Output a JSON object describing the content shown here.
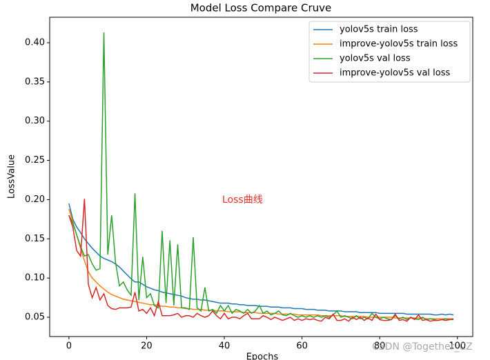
{
  "chart_data": {
    "type": "line",
    "title": "Model Loss Compare Cruve",
    "xlabel": "Epochs",
    "ylabel": "LossValue",
    "annotations": [
      "Loss曲线",
      "CSDN @Together_CZ"
    ],
    "legend": "upper right",
    "xlim": [
      -4.95,
      103.95
    ],
    "xticks": [
      0,
      20,
      40,
      60,
      80,
      100
    ],
    "ylim": [
      0.0254,
      0.4325
    ],
    "yticks": [
      0.05,
      {
        "value": 0.1,
        "label": "0.10"
      },
      0.15,
      {
        "value": 0.2,
        "label": "0.20"
      },
      0.25,
      {
        "value": 0.3,
        "label": "0.30"
      },
      0.35,
      {
        "value": 0.4,
        "label": "0.40"
      }
    ],
    "x": [
      0,
      1,
      2,
      3,
      4,
      5,
      6,
      7,
      8,
      9,
      10,
      11,
      12,
      13,
      14,
      15,
      16,
      17,
      18,
      19,
      20,
      21,
      22,
      23,
      24,
      25,
      26,
      27,
      28,
      29,
      30,
      31,
      32,
      33,
      34,
      35,
      36,
      37,
      38,
      39,
      40,
      41,
      42,
      43,
      44,
      45,
      46,
      47,
      48,
      49,
      50,
      51,
      52,
      53,
      54,
      55,
      56,
      57,
      58,
      59,
      60,
      61,
      62,
      63,
      64,
      65,
      66,
      67,
      68,
      69,
      70,
      71,
      72,
      73,
      74,
      75,
      76,
      77,
      78,
      79,
      80,
      81,
      82,
      83,
      84,
      85,
      86,
      87,
      88,
      89,
      90,
      91,
      92,
      93,
      94,
      95,
      96,
      97,
      98,
      99
    ],
    "series": [
      {
        "name": "yolov5s train loss",
        "color": "#1f77b4",
        "values": [
          0.195,
          0.175,
          0.165,
          0.158,
          0.15,
          0.144,
          0.138,
          0.133,
          0.128,
          0.125,
          0.123,
          0.121,
          0.118,
          0.114,
          0.109,
          0.104,
          0.099,
          0.095,
          0.095,
          0.092,
          0.089,
          0.087,
          0.085,
          0.084,
          0.082,
          0.081,
          0.08,
          0.079,
          0.078,
          0.077,
          0.075,
          0.074,
          0.073,
          0.073,
          0.072,
          0.072,
          0.071,
          0.07,
          0.069,
          0.068,
          0.068,
          0.068,
          0.067,
          0.067,
          0.066,
          0.066,
          0.065,
          0.065,
          0.065,
          0.064,
          0.064,
          0.064,
          0.063,
          0.063,
          0.063,
          0.062,
          0.062,
          0.062,
          0.061,
          0.061,
          0.061,
          0.06,
          0.06,
          0.06,
          0.059,
          0.059,
          0.059,
          0.058,
          0.058,
          0.058,
          0.058,
          0.057,
          0.057,
          0.057,
          0.057,
          0.056,
          0.056,
          0.056,
          0.056,
          0.056,
          0.055,
          0.055,
          0.055,
          0.055,
          0.055,
          0.055,
          0.055,
          0.054,
          0.054,
          0.054,
          0.054,
          0.054,
          0.054,
          0.054,
          0.053,
          0.053,
          0.054,
          0.053,
          0.054,
          0.053
        ]
      },
      {
        "name": "improve-yolov5s train loss",
        "color": "#ff7f0e",
        "values": [
          0.188,
          0.172,
          0.155,
          0.138,
          0.122,
          0.108,
          0.1,
          0.095,
          0.09,
          0.086,
          0.082,
          0.079,
          0.077,
          0.075,
          0.073,
          0.072,
          0.071,
          0.07,
          0.069,
          0.068,
          0.067,
          0.066,
          0.066,
          0.065,
          0.064,
          0.064,
          0.063,
          0.063,
          0.062,
          0.062,
          0.061,
          0.061,
          0.06,
          0.06,
          0.06,
          0.059,
          0.059,
          0.059,
          0.058,
          0.058,
          0.058,
          0.057,
          0.057,
          0.057,
          0.057,
          0.056,
          0.056,
          0.056,
          0.056,
          0.055,
          0.055,
          0.055,
          0.055,
          0.055,
          0.054,
          0.054,
          0.054,
          0.054,
          0.054,
          0.053,
          0.053,
          0.053,
          0.053,
          0.053,
          0.053,
          0.052,
          0.052,
          0.052,
          0.052,
          0.052,
          0.052,
          0.051,
          0.051,
          0.051,
          0.051,
          0.051,
          0.051,
          0.05,
          0.05,
          0.05,
          0.05,
          0.05,
          0.05,
          0.05,
          0.049,
          0.049,
          0.049,
          0.049,
          0.049,
          0.049,
          0.049,
          0.049,
          0.048,
          0.048,
          0.048,
          0.048,
          0.048,
          0.048,
          0.048,
          0.048
        ]
      },
      {
        "name": "yolov5s val loss",
        "color": "#2ca02c",
        "values": [
          0.18,
          0.17,
          0.155,
          0.14,
          0.128,
          0.13,
          0.118,
          0.11,
          0.112,
          0.413,
          0.13,
          0.18,
          0.12,
          0.09,
          0.095,
          0.085,
          0.078,
          0.208,
          0.072,
          0.127,
          0.075,
          0.08,
          0.065,
          0.062,
          0.16,
          0.068,
          0.148,
          0.065,
          0.143,
          0.062,
          0.062,
          0.06,
          0.152,
          0.062,
          0.058,
          0.088,
          0.058,
          0.06,
          0.055,
          0.065,
          0.058,
          0.065,
          0.055,
          0.06,
          0.058,
          0.055,
          0.06,
          0.055,
          0.058,
          0.065,
          0.055,
          0.058,
          0.053,
          0.055,
          0.058,
          0.053,
          0.052,
          0.055,
          0.052,
          0.05,
          0.052,
          0.05,
          0.052,
          0.05,
          0.052,
          0.05,
          0.052,
          0.05,
          0.053,
          0.058,
          0.05,
          0.052,
          0.05,
          0.048,
          0.052,
          0.048,
          0.05,
          0.048,
          0.055,
          0.05,
          0.048,
          0.05,
          0.048,
          0.047,
          0.052,
          0.048,
          0.05,
          0.047,
          0.05,
          0.048,
          0.047,
          0.05,
          0.047,
          0.048,
          0.047,
          0.046,
          0.047,
          0.048,
          0.047,
          0.048
        ]
      },
      {
        "name": "improve-yolov5s val loss",
        "color": "#d62728",
        "values": [
          0.18,
          0.165,
          0.135,
          0.128,
          0.201,
          0.092,
          0.075,
          0.088,
          0.072,
          0.08,
          0.065,
          0.061,
          0.06,
          0.062,
          0.062,
          0.062,
          0.063,
          0.082,
          0.058,
          0.06,
          0.055,
          0.062,
          0.052,
          0.07,
          0.052,
          0.052,
          0.052,
          0.053,
          0.055,
          0.05,
          0.052,
          0.052,
          0.05,
          0.055,
          0.052,
          0.05,
          0.052,
          0.058,
          0.052,
          0.048,
          0.055,
          0.048,
          0.05,
          0.05,
          0.048,
          0.052,
          0.055,
          0.048,
          0.048,
          0.048,
          0.052,
          0.05,
          0.047,
          0.05,
          0.048,
          0.046,
          0.048,
          0.05,
          0.046,
          0.048,
          0.046,
          0.048,
          0.047,
          0.048,
          0.046,
          0.045,
          0.05,
          0.048,
          0.054,
          0.046,
          0.046,
          0.048,
          0.045,
          0.05,
          0.047,
          0.05,
          0.046,
          0.049,
          0.046,
          0.054,
          0.047,
          0.046,
          0.046,
          0.047,
          0.054,
          0.046,
          0.047,
          0.045,
          0.05,
          0.047,
          0.053,
          0.046,
          0.047,
          0.045,
          0.046,
          0.046,
          0.047,
          0.046,
          0.047,
          0.047
        ]
      }
    ]
  }
}
